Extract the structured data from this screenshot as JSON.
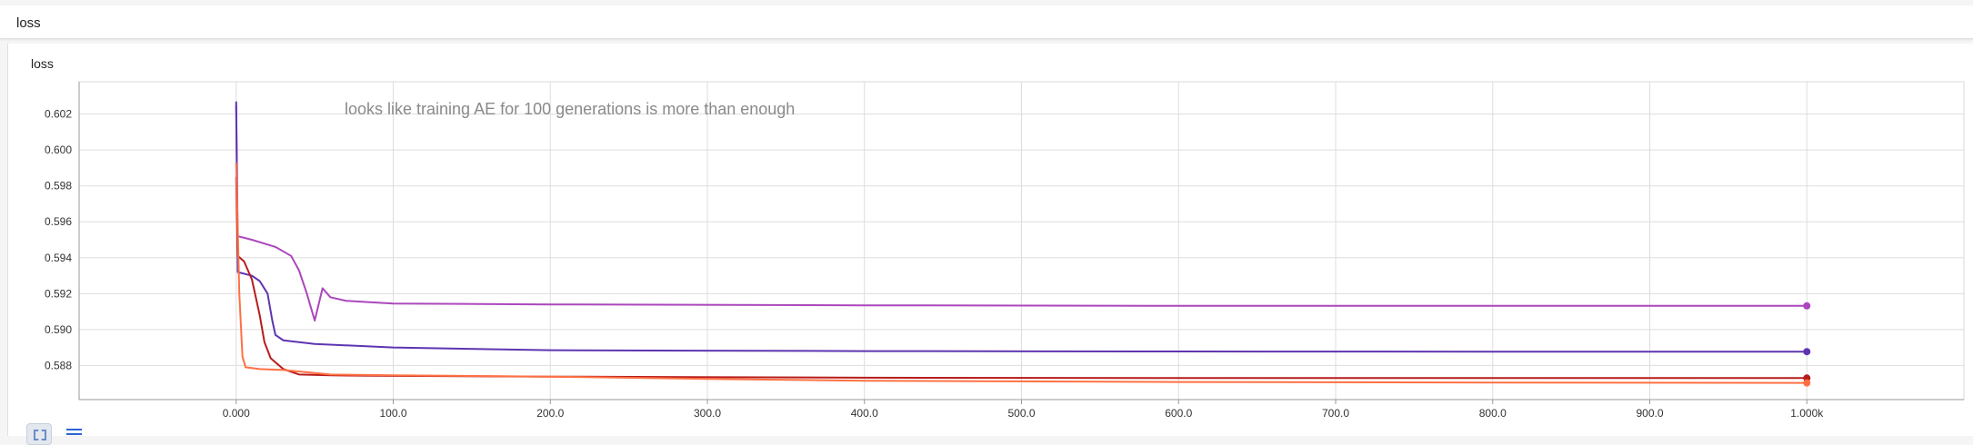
{
  "section": {
    "title": "loss"
  },
  "card": {
    "title": "loss"
  },
  "chart_data": {
    "type": "line",
    "title": "loss",
    "annotation": "looks like training AE for 100 generations is more than enough",
    "xlim": [
      -100,
      1100
    ],
    "ylim": [
      0.5861,
      0.6038
    ],
    "x_ticks": [
      0,
      100,
      200,
      300,
      400,
      500,
      600,
      700,
      800,
      900,
      1000
    ],
    "x_tick_labels": [
      "0.000",
      "100.0",
      "200.0",
      "300.0",
      "400.0",
      "500.0",
      "600.0",
      "700.0",
      "800.0",
      "900.0",
      "1.000k"
    ],
    "y_ticks": [
      0.588,
      0.59,
      0.592,
      0.594,
      0.596,
      0.598,
      0.6,
      0.602
    ],
    "y_tick_labels": [
      "0.588",
      "0.590",
      "0.592",
      "0.594",
      "0.596",
      "0.598",
      "0.600",
      "0.602"
    ],
    "grid": true,
    "series": [
      {
        "color": "#ab47bc",
        "points": [
          [
            0,
            0.6025
          ],
          [
            1,
            0.5952
          ],
          [
            10,
            0.595
          ],
          [
            25,
            0.5946
          ],
          [
            35,
            0.5941
          ],
          [
            40,
            0.5933
          ],
          [
            45,
            0.592
          ],
          [
            50,
            0.5905
          ],
          [
            55,
            0.5923
          ],
          [
            60,
            0.5918
          ],
          [
            70,
            0.5916
          ],
          [
            100,
            0.59145
          ],
          [
            200,
            0.5914
          ],
          [
            400,
            0.59135
          ],
          [
            600,
            0.59132
          ],
          [
            800,
            0.59132
          ],
          [
            1000,
            0.59132
          ]
        ]
      },
      {
        "color": "#5e35b1",
        "points": [
          [
            0,
            0.6027
          ],
          [
            1,
            0.5932
          ],
          [
            10,
            0.593
          ],
          [
            15,
            0.5927
          ],
          [
            20,
            0.592
          ],
          [
            23,
            0.5905
          ],
          [
            25,
            0.5897
          ],
          [
            30,
            0.5894
          ],
          [
            50,
            0.5892
          ],
          [
            100,
            0.589
          ],
          [
            200,
            0.58885
          ],
          [
            400,
            0.5888
          ],
          [
            600,
            0.58878
          ],
          [
            800,
            0.58877
          ],
          [
            1000,
            0.58877
          ]
        ]
      },
      {
        "color": "#b71c1c",
        "points": [
          [
            0,
            0.5985
          ],
          [
            1,
            0.5941
          ],
          [
            5,
            0.5938
          ],
          [
            10,
            0.5928
          ],
          [
            15,
            0.5908
          ],
          [
            18,
            0.5893
          ],
          [
            22,
            0.5884
          ],
          [
            30,
            0.5878
          ],
          [
            40,
            0.5875
          ],
          [
            60,
            0.58745
          ],
          [
            100,
            0.58742
          ],
          [
            200,
            0.58738
          ],
          [
            400,
            0.58732
          ],
          [
            600,
            0.5873
          ],
          [
            800,
            0.5873
          ],
          [
            1000,
            0.5873
          ]
        ]
      },
      {
        "color": "#ff7043",
        "points": [
          [
            0,
            0.5993
          ],
          [
            2,
            0.592
          ],
          [
            4,
            0.5885
          ],
          [
            6,
            0.5879
          ],
          [
            15,
            0.5878
          ],
          [
            30,
            0.58775
          ],
          [
            60,
            0.5875
          ],
          [
            100,
            0.58745
          ],
          [
            200,
            0.58738
          ],
          [
            300,
            0.58725
          ],
          [
            400,
            0.58715
          ],
          [
            600,
            0.58708
          ],
          [
            800,
            0.58705
          ],
          [
            1000,
            0.58703
          ]
        ]
      }
    ]
  }
}
